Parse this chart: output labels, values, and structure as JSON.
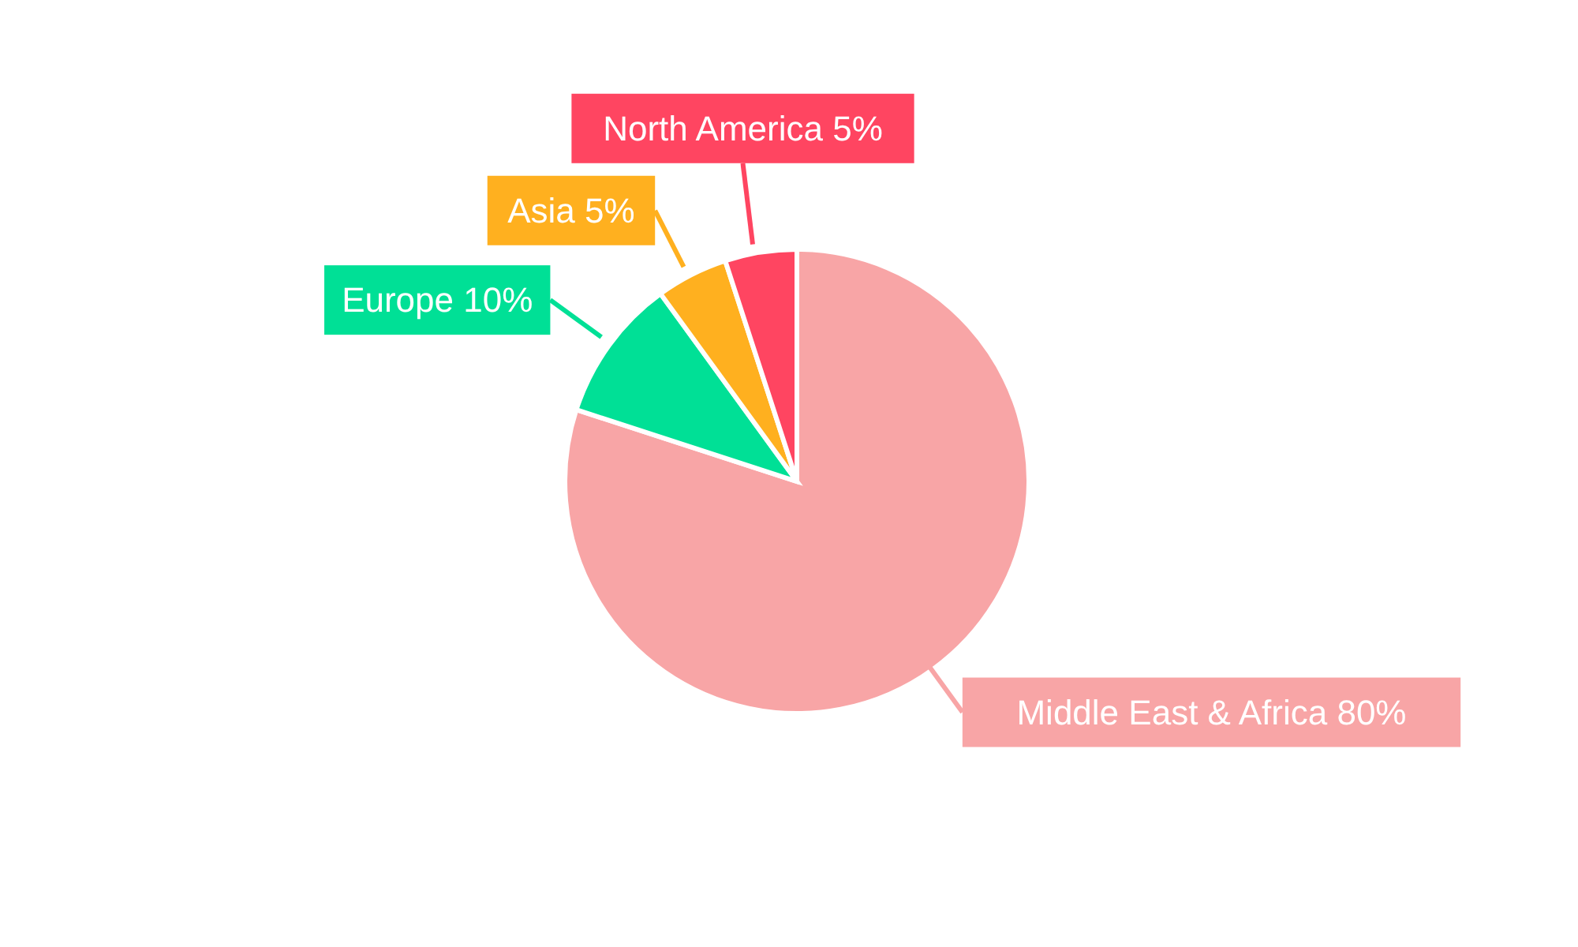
{
  "chart_data": {
    "type": "pie",
    "categories": [
      "Middle East & Africa",
      "Europe",
      "Asia",
      "North America"
    ],
    "values": [
      80,
      10,
      5,
      5
    ],
    "value_labels": [
      "80%",
      "10%",
      "5%",
      "5%"
    ],
    "colors": [
      "#f8a5a6",
      "#00e096",
      "#ffb01f",
      "#ff4561"
    ]
  }
}
